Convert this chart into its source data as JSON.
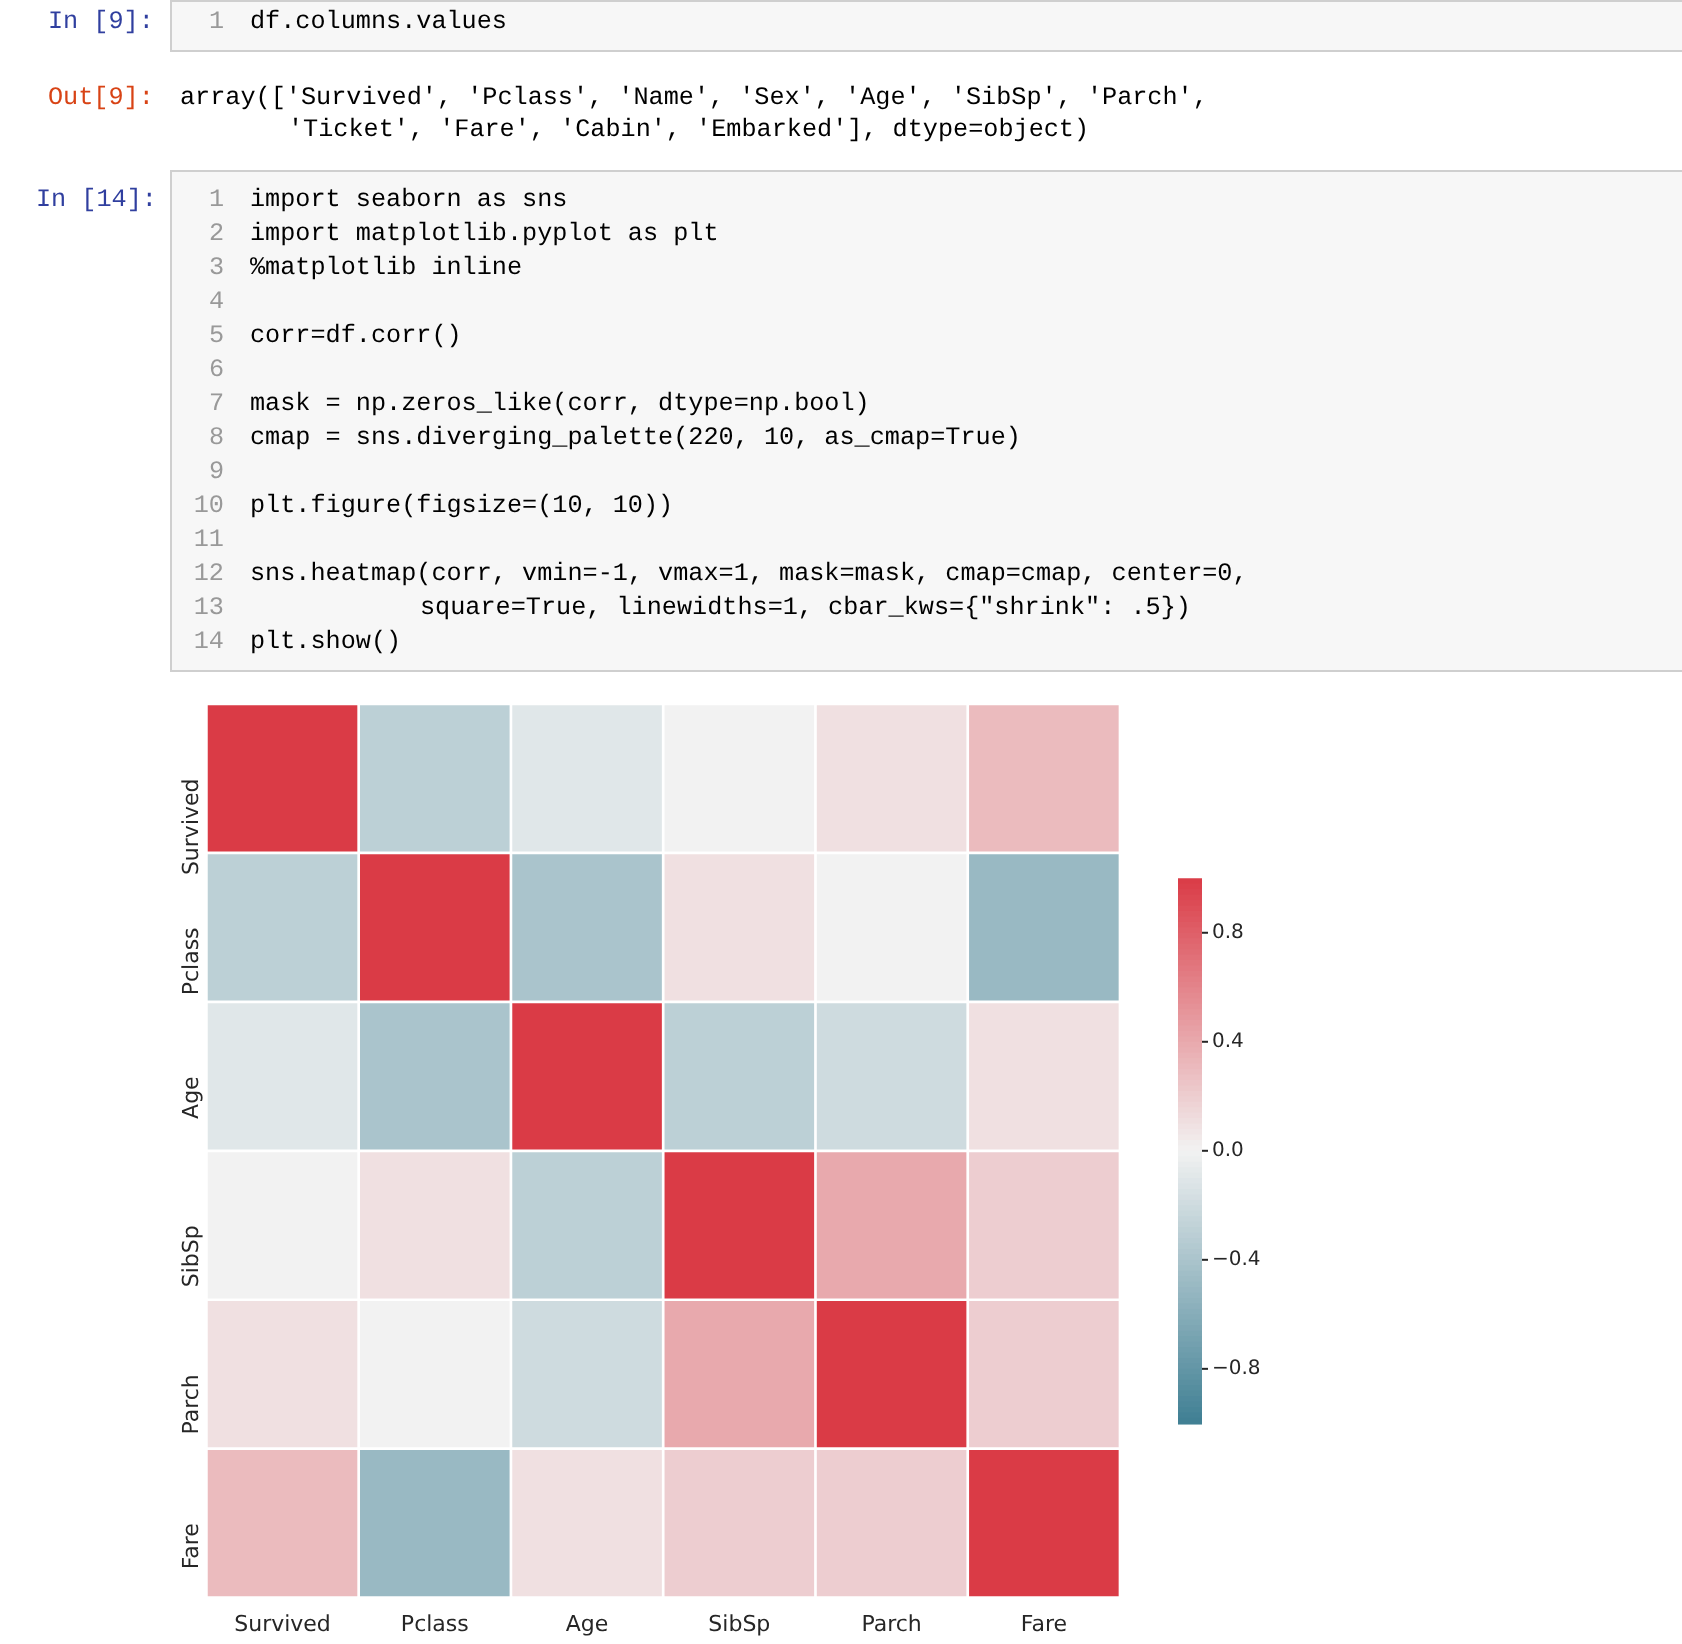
{
  "chart_data": {
    "type": "heatmap",
    "categories": [
      "Survived",
      "Pclass",
      "Age",
      "SibSp",
      "Parch",
      "Fare"
    ],
    "y_categories": [
      "Survived",
      "Pclass",
      "Age",
      "SibSp",
      "Parch",
      "Fare"
    ],
    "cells": [
      [
        1,
        -0.3,
        -0.1,
        0.0,
        0.1,
        0.3
      ],
      [
        -0.3,
        1,
        -0.4,
        0.1,
        0.0,
        -0.5
      ],
      [
        -0.1,
        -0.4,
        1,
        -0.3,
        -0.2,
        0.1
      ],
      [
        0.0,
        0.1,
        -0.3,
        1,
        0.4,
        0.2
      ],
      [
        0.1,
        0.0,
        -0.2,
        0.4,
        1,
        0.2
      ],
      [
        0.3,
        -0.5,
        0.1,
        0.2,
        0.2,
        1
      ]
    ],
    "clim": [
      -1,
      1
    ],
    "cticks": [
      {
        "value": -0.8,
        "label": "−0.8"
      },
      {
        "value": -0.4,
        "label": "−0.4"
      },
      {
        "value": 0,
        "label": "0.0"
      },
      0.4,
      0.8
    ],
    "annotations": [
      "In [9]:",
      "1",
      "df.columns.values",
      "Out[9]:",
      "array(['Survived', 'Pclass', 'Name', 'Sex', 'Age', 'SibSp', 'Parch',",
      "'Ticket', 'Fare', 'Cabin', 'Embarked'], dtype=object)",
      "In [14]:",
      "1\n2\n3\n4\n5\n6\n7\n8\n9\n10\n11\n12\n13\n14",
      "import seaborn as sns",
      "import matplotlib.pyplot as plt",
      "%matplotlib inline",
      "corr=df.corr()",
      "mask = np.zeros_like(corr, dtype=np.bool)",
      "cmap = sns.diverging_palette(220, 10, as_cmap=True)",
      "plt.figure(figsize=(10, 10))",
      "sns.heatmap(corr, vmin=-1, vmax=1, mask=mask, cmap=cmap, center=0,",
      "square=True, linewidths=1, cbar_kws={\"shrink\": .5})",
      "plt.show()"
    ]
  }
}
